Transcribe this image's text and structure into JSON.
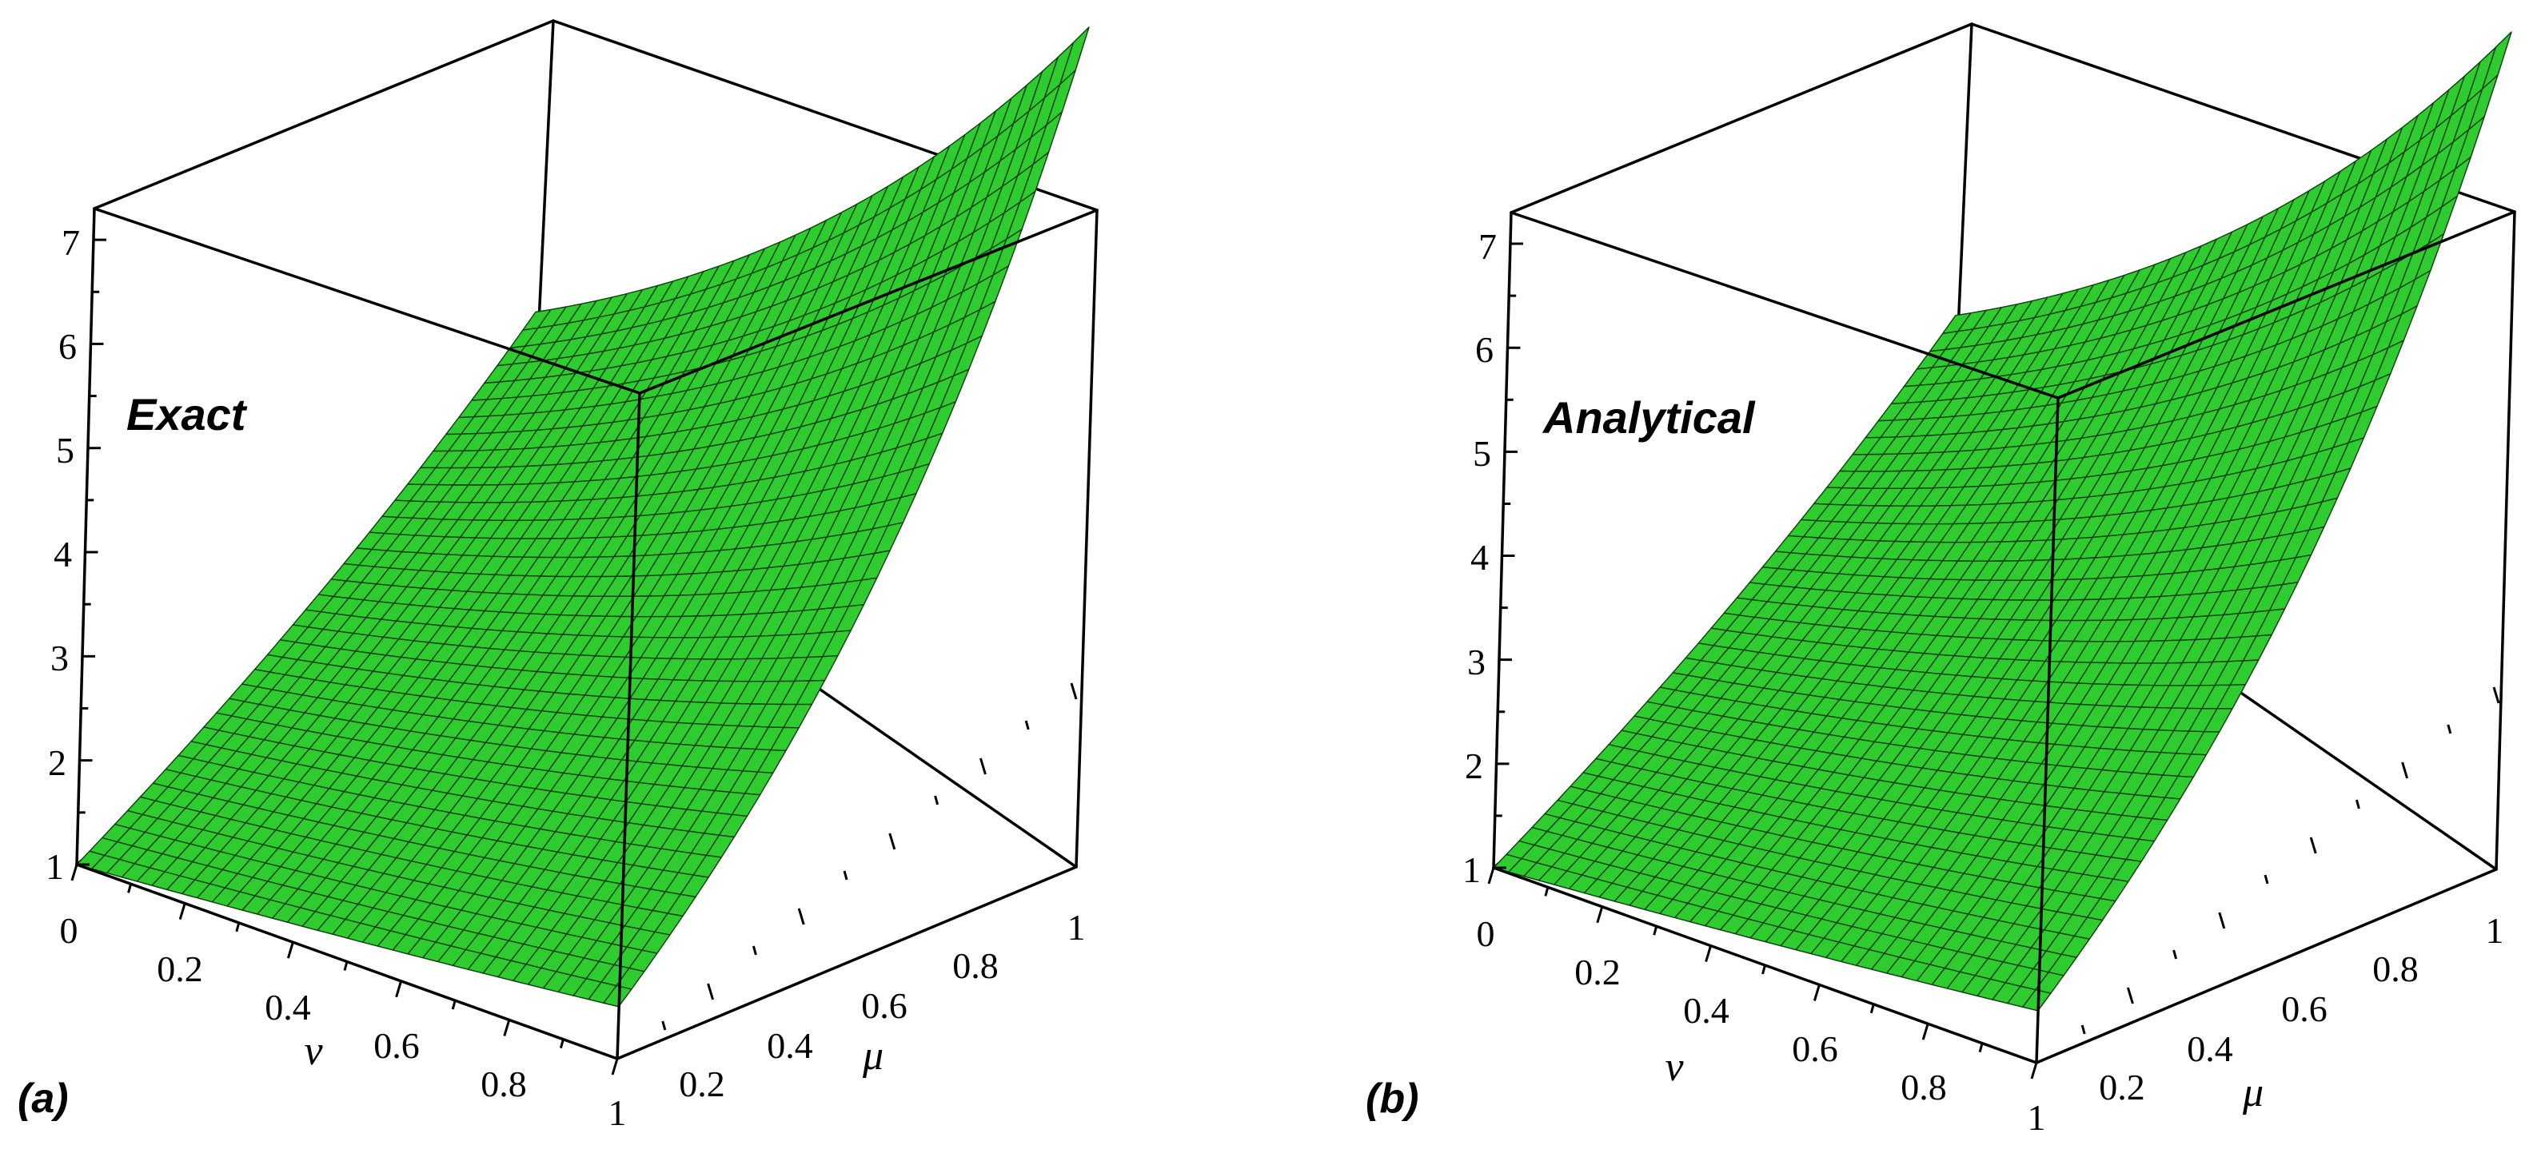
{
  "chart_data": [
    {
      "type": "surface3d",
      "panel_label": "(a)",
      "title": "Exact",
      "x": {
        "symbol": "ν",
        "range": [
          0,
          1
        ],
        "ticks": [
          "0",
          "0.2",
          "0.4",
          "0.6",
          "0.8",
          "1"
        ]
      },
      "y": {
        "symbol": "μ",
        "range": [
          0,
          1
        ],
        "ticks": [
          "0.2",
          "0.4",
          "0.6",
          "0.8",
          "1"
        ]
      },
      "z": {
        "range": [
          1,
          7.3
        ],
        "ticks": [
          "1",
          "2",
          "3",
          "4",
          "5",
          "6",
          "7"
        ]
      },
      "corner_values": {
        "nu0_mu0": 1.0,
        "nu1_mu0": 1.5,
        "nu0_mu1": 2.7,
        "nu1_mu1": 7.3
      },
      "grid": "mesh",
      "surface_color": "#2ecc2e",
      "mesh_color": "#0b3d0b"
    },
    {
      "type": "surface3d",
      "panel_label": "(b)",
      "title": "Analytical",
      "x": {
        "symbol": "ν",
        "range": [
          0,
          1
        ],
        "ticks": [
          "0",
          "0.2",
          "0.4",
          "0.6",
          "0.8",
          "1"
        ]
      },
      "y": {
        "symbol": "μ",
        "range": [
          0,
          1
        ],
        "ticks": [
          "0.2",
          "0.4",
          "0.6",
          "0.8",
          "1"
        ]
      },
      "z": {
        "range": [
          1,
          7.3
        ],
        "ticks": [
          "1",
          "2",
          "3",
          "4",
          "5",
          "6",
          "7"
        ]
      },
      "corner_values": {
        "nu0_mu0": 1.0,
        "nu1_mu0": 1.5,
        "nu0_mu1": 2.7,
        "nu1_mu1": 7.3
      },
      "grid": "mesh",
      "surface_color": "#2ecc2e",
      "mesh_color": "#0b3d0b"
    }
  ]
}
